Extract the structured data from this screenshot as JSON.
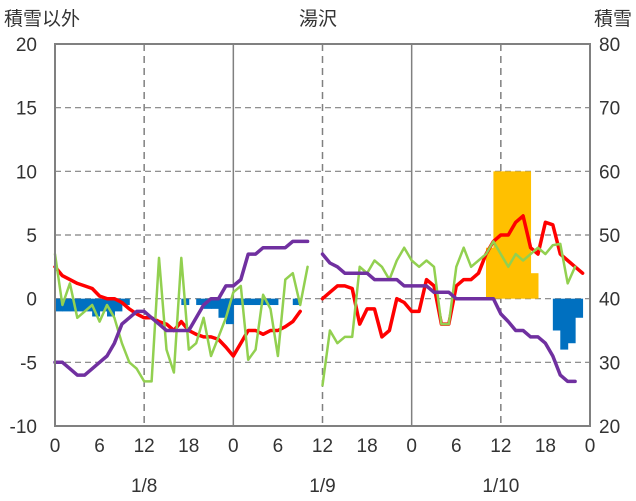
{
  "chart_data": {
    "type": "line+bar",
    "title": "湯沢",
    "left_axis_label": "積雪以外",
    "right_axis_label": "積雪",
    "left_axis": {
      "ylim": [
        -10,
        20
      ],
      "ticks": [
        "20",
        "15",
        "10",
        "5",
        "0",
        "-5",
        "-10"
      ]
    },
    "right_axis": {
      "ylim": [
        20,
        80
      ],
      "ticks": [
        "80",
        "70",
        "60",
        "50",
        "40",
        "30",
        "20"
      ]
    },
    "x_axis": {
      "range_hours": [
        0,
        72
      ],
      "hour_ticks": [
        "0",
        "6",
        "12",
        "18",
        "0",
        "6",
        "12",
        "18",
        "0",
        "6",
        "12",
        "18",
        "0"
      ],
      "date_labels": [
        {
          "label": "1/8",
          "hour": 12
        },
        {
          "label": "1/9",
          "hour": 36
        },
        {
          "label": "1/10",
          "hour": 60
        }
      ],
      "dashed_hours": [
        12,
        36,
        60
      ],
      "solid_hours": [
        24,
        48
      ]
    },
    "series": [
      {
        "key": "precip_bar",
        "axis": "left",
        "color": "#0070C0",
        "points": [
          [
            0,
            -1
          ],
          [
            1,
            -1
          ],
          [
            2,
            -1
          ],
          [
            3,
            -1
          ],
          [
            4,
            -1
          ],
          [
            5,
            -1.4
          ],
          [
            6,
            -1
          ],
          [
            7,
            -1.4
          ],
          [
            8,
            -1
          ],
          [
            9,
            -0.5
          ],
          [
            17,
            -0.5
          ],
          [
            19,
            -0.5
          ],
          [
            20,
            -0.8
          ],
          [
            21,
            -0.8
          ],
          [
            22,
            -1.5
          ],
          [
            23,
            -2
          ],
          [
            24,
            -0.5
          ],
          [
            25,
            -0.5
          ],
          [
            26,
            -0.5
          ],
          [
            27,
            -0.5
          ],
          [
            28,
            -0.5
          ],
          [
            29,
            -0.5
          ],
          [
            32,
            -0.5
          ],
          [
            67,
            -2.5
          ],
          [
            68,
            -4
          ],
          [
            69,
            -3.5
          ],
          [
            70,
            -1.5
          ]
        ]
      },
      {
        "key": "snow_bar",
        "axis": "right",
        "color": "#FFC000",
        "points": [
          [
            58,
            48
          ],
          [
            59,
            60
          ],
          [
            60,
            60
          ],
          [
            61,
            60
          ],
          [
            62,
            60
          ],
          [
            63,
            60
          ],
          [
            64,
            44
          ]
        ]
      },
      {
        "key": "red_line",
        "axis": "left",
        "color": "#FF0000",
        "segments": [
          [
            [
              0,
              2.5
            ],
            [
              1,
              1.8
            ],
            [
              2,
              1.5
            ],
            [
              3,
              1.2
            ],
            [
              4,
              1
            ],
            [
              5,
              0.8
            ],
            [
              6,
              0.2
            ],
            [
              7,
              0
            ],
            [
              8,
              0
            ],
            [
              9,
              -0.3
            ],
            [
              10,
              -0.8
            ],
            [
              11,
              -1.2
            ],
            [
              12,
              -1.5
            ],
            [
              13,
              -1.5
            ],
            [
              14,
              -1.8
            ],
            [
              15,
              -2
            ],
            [
              16,
              -2.5
            ],
            [
              17,
              -1.8
            ],
            [
              18,
              -2.5
            ],
            [
              19,
              -2.8
            ],
            [
              20,
              -3
            ],
            [
              21,
              -3
            ],
            [
              22,
              -3.2
            ],
            [
              23,
              -3.8
            ],
            [
              24,
              -4.5
            ],
            [
              25,
              -3.5
            ],
            [
              26,
              -2.5
            ],
            [
              27,
              -2.5
            ],
            [
              28,
              -2.8
            ],
            [
              29,
              -2.5
            ],
            [
              30,
              -2.5
            ],
            [
              31,
              -2.2
            ],
            [
              32,
              -1.8
            ],
            [
              33,
              -1
            ]
          ],
          [
            [
              36,
              0
            ],
            [
              37,
              0.5
            ],
            [
              38,
              1
            ],
            [
              39,
              1
            ],
            [
              40,
              0.8
            ],
            [
              41,
              -2
            ],
            [
              42,
              -0.8
            ],
            [
              43,
              -0.8
            ],
            [
              44,
              -3
            ],
            [
              45,
              -2.5
            ],
            [
              46,
              0
            ],
            [
              47,
              -0.3
            ],
            [
              48,
              -1
            ],
            [
              49,
              -1
            ],
            [
              50,
              1.5
            ],
            [
              51,
              1
            ],
            [
              52,
              -2
            ],
            [
              53,
              -2
            ],
            [
              54,
              1
            ],
            [
              55,
              1.5
            ],
            [
              56,
              1.5
            ],
            [
              57,
              2
            ],
            [
              58,
              3.5
            ],
            [
              59,
              4.5
            ],
            [
              60,
              5
            ],
            [
              61,
              5
            ],
            [
              62,
              6
            ],
            [
              63,
              6.5
            ],
            [
              64,
              4
            ],
            [
              65,
              3.5
            ],
            [
              66,
              6
            ],
            [
              67,
              5.8
            ],
            [
              68,
              3.5
            ],
            [
              69,
              3
            ],
            [
              70,
              2.5
            ],
            [
              71,
              2
            ]
          ]
        ]
      },
      {
        "key": "green_line",
        "axis": "left",
        "color": "#92D050",
        "segments": [
          [
            [
              0,
              3.5
            ],
            [
              1,
              -0.5
            ],
            [
              2,
              1.2
            ],
            [
              3,
              -1.5
            ],
            [
              4,
              -1
            ],
            [
              5,
              -0.5
            ],
            [
              6,
              -1.8
            ],
            [
              7,
              -0.5
            ],
            [
              8,
              -1.5
            ],
            [
              9,
              -3.5
            ],
            [
              10,
              -5
            ],
            [
              11,
              -5.5
            ],
            [
              12,
              -6.5
            ],
            [
              13,
              -6.5
            ],
            [
              14,
              3.2
            ],
            [
              15,
              -4
            ],
            [
              16,
              -5.8
            ],
            [
              17,
              3.2
            ],
            [
              18,
              -4
            ],
            [
              19,
              -3.5
            ],
            [
              20,
              -1.5
            ],
            [
              21,
              -4.5
            ],
            [
              22,
              -3
            ],
            [
              23,
              -1.5
            ],
            [
              24,
              0.5
            ],
            [
              25,
              1
            ],
            [
              26,
              -4.8
            ],
            [
              27,
              -4
            ],
            [
              28,
              0.3
            ],
            [
              29,
              -0.8
            ],
            [
              30,
              -4.5
            ],
            [
              31,
              1.5
            ],
            [
              32,
              2
            ],
            [
              33,
              -0.5
            ],
            [
              34,
              2.5
            ]
          ],
          [
            [
              36,
              -6.8
            ],
            [
              37,
              -2.5
            ],
            [
              38,
              -3.5
            ],
            [
              39,
              -3
            ],
            [
              40,
              -3
            ],
            [
              41,
              2.5
            ],
            [
              42,
              2
            ],
            [
              43,
              3
            ],
            [
              44,
              2.5
            ],
            [
              45,
              1.5
            ],
            [
              46,
              3
            ],
            [
              47,
              4
            ],
            [
              48,
              3
            ],
            [
              49,
              2.5
            ],
            [
              50,
              3
            ],
            [
              51,
              2.5
            ],
            [
              52,
              -2
            ],
            [
              53,
              -2
            ],
            [
              54,
              2.5
            ],
            [
              55,
              4
            ],
            [
              56,
              2.5
            ],
            [
              57,
              3
            ],
            [
              58,
              3.5
            ],
            [
              59,
              4.5
            ],
            [
              60,
              3.5
            ],
            [
              61,
              2.5
            ],
            [
              62,
              3.5
            ],
            [
              63,
              3
            ],
            [
              64,
              3.5
            ],
            [
              65,
              4
            ],
            [
              66,
              3.5
            ],
            [
              67,
              4.2
            ],
            [
              68,
              4.3
            ],
            [
              69,
              1.2
            ],
            [
              70,
              2.5
            ]
          ]
        ]
      },
      {
        "key": "purple_line",
        "axis": "left",
        "color": "#7030A0",
        "segments": [
          [
            [
              0,
              -5
            ],
            [
              1,
              -5
            ],
            [
              2,
              -5.5
            ],
            [
              3,
              -6
            ],
            [
              4,
              -6
            ],
            [
              5,
              -5.5
            ],
            [
              6,
              -5
            ],
            [
              7,
              -4.5
            ],
            [
              8,
              -3.5
            ],
            [
              9,
              -2
            ],
            [
              10,
              -1.5
            ],
            [
              11,
              -1
            ],
            [
              12,
              -1
            ],
            [
              13,
              -1.5
            ],
            [
              14,
              -2
            ],
            [
              15,
              -2.5
            ],
            [
              16,
              -2.5
            ],
            [
              17,
              -2.5
            ],
            [
              18,
              -2.5
            ],
            [
              19,
              -1.5
            ],
            [
              20,
              -0.5
            ],
            [
              21,
              0
            ],
            [
              22,
              0
            ],
            [
              23,
              1
            ],
            [
              24,
              1
            ],
            [
              25,
              1.5
            ],
            [
              26,
              3.5
            ],
            [
              27,
              3.5
            ],
            [
              28,
              4
            ],
            [
              29,
              4
            ],
            [
              30,
              4
            ],
            [
              31,
              4
            ],
            [
              32,
              4.5
            ],
            [
              33,
              4.5
            ],
            [
              34,
              4.5
            ]
          ],
          [
            [
              36,
              3.5
            ],
            [
              37,
              2.8
            ],
            [
              38,
              2.5
            ],
            [
              39,
              2
            ],
            [
              40,
              2
            ],
            [
              41,
              2
            ],
            [
              42,
              2
            ],
            [
              43,
              1.5
            ],
            [
              44,
              1.5
            ],
            [
              45,
              1.5
            ],
            [
              46,
              1.5
            ],
            [
              47,
              1
            ],
            [
              48,
              1
            ],
            [
              49,
              1
            ],
            [
              50,
              1
            ],
            [
              51,
              0.5
            ],
            [
              52,
              0.5
            ],
            [
              53,
              0.5
            ],
            [
              54,
              0
            ],
            [
              55,
              0
            ],
            [
              56,
              0
            ],
            [
              57,
              0
            ],
            [
              58,
              0
            ],
            [
              59,
              0
            ],
            [
              60,
              -1.2
            ],
            [
              61,
              -1.8
            ],
            [
              62,
              -2.5
            ],
            [
              63,
              -2.5
            ],
            [
              64,
              -3
            ],
            [
              65,
              -3
            ],
            [
              66,
              -3.5
            ],
            [
              67,
              -4.5
            ],
            [
              68,
              -6
            ],
            [
              69,
              -6.5
            ],
            [
              70,
              -6.5
            ]
          ]
        ]
      }
    ]
  }
}
